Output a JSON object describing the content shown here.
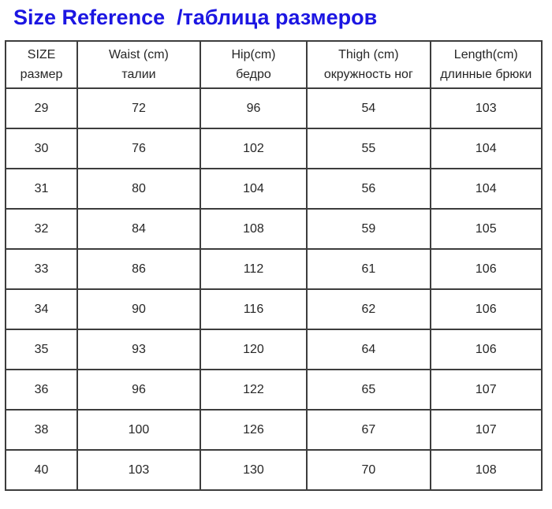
{
  "title": "Size Reference  /таблица размеров",
  "colors": {
    "title_blue": "#1c16e2",
    "border": "#3d3d3d",
    "text": "#262626",
    "background": "#ffffff"
  },
  "table": {
    "columns": [
      {
        "en": "SIZE",
        "ru": "размер"
      },
      {
        "en": "Waist (cm)",
        "ru": "талии"
      },
      {
        "en": "Hip(cm)",
        "ru": "бедро"
      },
      {
        "en": "Thigh (cm)",
        "ru": "окружность ног"
      },
      {
        "en": "Length(cm)",
        "ru": "длинные брюки"
      }
    ],
    "rows": [
      [
        "29",
        "72",
        "96",
        "54",
        "103"
      ],
      [
        "30",
        "76",
        "102",
        "55",
        "104"
      ],
      [
        "31",
        "80",
        "104",
        "56",
        "104"
      ],
      [
        "32",
        "84",
        "108",
        "59",
        "105"
      ],
      [
        "33",
        "86",
        "112",
        "61",
        "106"
      ],
      [
        "34",
        "90",
        "116",
        "62",
        "106"
      ],
      [
        "35",
        "93",
        "120",
        "64",
        "106"
      ],
      [
        "36",
        "96",
        "122",
        "65",
        "107"
      ],
      [
        "38",
        "100",
        "126",
        "67",
        "107"
      ],
      [
        "40",
        "103",
        "130",
        "70",
        "108"
      ]
    ]
  }
}
